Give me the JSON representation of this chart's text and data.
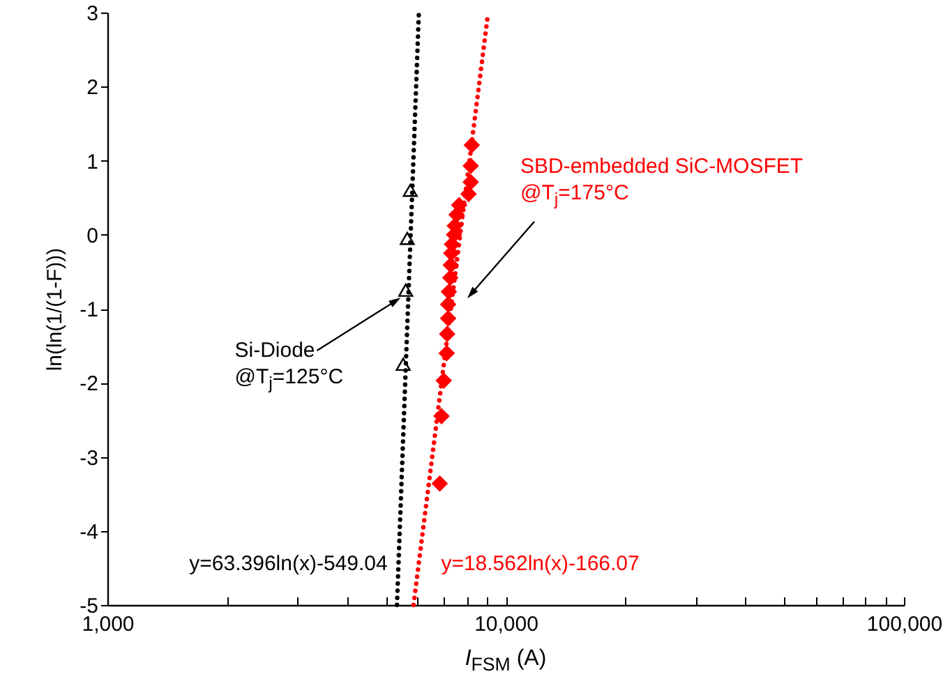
{
  "chart_data": {
    "type": "scatter",
    "ylabel": "ln(ln(1/(1-F)))",
    "xlabel": "I$_{FSM}$ (A)",
    "log": "x",
    "grid": false,
    "xlim": [
      1000,
      100000
    ],
    "ylim": [
      -5,
      3
    ],
    "xticks": [
      {
        "value": 1000,
        "label": "1,000"
      },
      {
        "value": 2000,
        "label": null
      },
      {
        "value": 3000,
        "label": null
      },
      {
        "value": 4000,
        "label": null
      },
      {
        "value": 5000,
        "label": null
      },
      {
        "value": 6000,
        "label": null
      },
      {
        "value": 7000,
        "label": null
      },
      {
        "value": 8000,
        "label": null
      },
      {
        "value": 9000,
        "label": null
      },
      {
        "value": 10000,
        "label": "10,000"
      },
      {
        "value": 20000,
        "label": null
      },
      {
        "value": 30000,
        "label": null
      },
      {
        "value": 40000,
        "label": null
      },
      {
        "value": 50000,
        "label": null
      },
      {
        "value": 60000,
        "label": null
      },
      {
        "value": 70000,
        "label": null
      },
      {
        "value": 80000,
        "label": null
      },
      {
        "value": 90000,
        "label": null
      },
      {
        "value": 100000,
        "label": "100,000"
      }
    ],
    "yticks": [
      -5,
      -4,
      -3,
      -2,
      -1,
      0,
      1,
      2,
      3
    ],
    "series": [
      {
        "type": "line",
        "color": "#000000",
        "line_style": "dotted",
        "marker": "none",
        "x": [
          5334,
          6053
        ],
        "values": [
          -5,
          3
        ]
      },
      {
        "type": "line",
        "color": "#ff0000",
        "line_style": "dotted",
        "marker": "none",
        "x": [
          5870,
          9036
        ],
        "values": [
          -5,
          3
        ]
      },
      {
        "color": "#000000",
        "marker": "triangle",
        "x": [
          5760,
          5660,
          5610,
          5530
        ],
        "values": [
          0.6,
          -0.05,
          -0.75,
          -1.75
        ]
      },
      {
        "color": "#ff0000",
        "marker": "diamond",
        "x": [
          8220,
          8170,
          8170,
          8070,
          7640,
          7530,
          7450,
          7420,
          7330,
          7300,
          7280,
          7260,
          7200,
          7170,
          7170,
          7130,
          7110,
          6990,
          6900,
          6830
        ],
        "values": [
          1.21,
          0.93,
          0.71,
          0.55,
          0.4,
          0.27,
          0.12,
          0.0,
          -0.13,
          -0.25,
          -0.41,
          -0.58,
          -0.77,
          -0.94,
          -1.13,
          -1.34,
          -1.6,
          -1.97,
          -2.45,
          -3.36
        ]
      }
    ],
    "annotations": [
      {
        "text": "Si-Diode\n@T$_{j}$=125°C",
        "x": 5450,
        "y": -0.85
      },
      "SBD-embedded SiC-MOSFET\n@T$_{j}$=175°C",
      {
        "text": "y=63.396ln(x)-549.04",
        "x": 5381,
        "y": -4.45
      },
      {
        "text": "y=18.562ln(x)-166.07",
        "x": 6050,
        "y": -4.45
      }
    ]
  }
}
